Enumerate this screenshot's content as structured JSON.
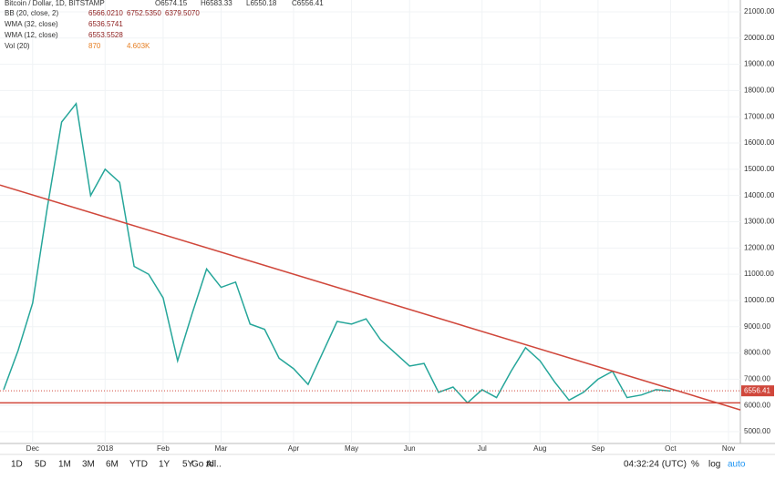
{
  "legend": {
    "symbol": "Bitcoin / Dollar, 1D, BITSTAMP",
    "ohlc": [
      "O6574.15",
      "H6583.33",
      "L6550.18",
      "C6556.41"
    ],
    "indicators": [
      {
        "label": "BB (20, close, 2)",
        "values": [
          "6566.0210",
          "6752.5350",
          "6379.5070"
        ]
      },
      {
        "label": "WMA (32, close)",
        "values": [
          "6536.5741"
        ]
      },
      {
        "label": "WMA (12, close)",
        "values": [
          "6553.5528"
        ]
      },
      {
        "label": "Vol (20)",
        "values": [
          "870",
          "4.603K"
        ]
      }
    ]
  },
  "chart_data": {
    "type": "line",
    "categories": [
      null,
      null,
      "Dec",
      null,
      null,
      null,
      null,
      "2018",
      null,
      null,
      null,
      "Feb",
      null,
      null,
      null,
      "Mar",
      null,
      null,
      null,
      null,
      "Apr",
      null,
      null,
      null,
      "May",
      null,
      null,
      null,
      "Jun",
      null,
      null,
      null,
      null,
      "Jul",
      null,
      null,
      null,
      "Aug",
      null,
      null,
      null,
      "Sep",
      null,
      null,
      null,
      null,
      "Oct",
      null,
      null,
      null,
      "Nov",
      null,
      null
    ],
    "series": [
      {
        "color": "#26a69a",
        "values": [
          6600,
          8100,
          9900,
          13500,
          16800,
          17500,
          14000,
          15000,
          14500,
          11300,
          11000,
          10100,
          7700,
          9500,
          11200,
          10500,
          10700,
          9100,
          8900,
          7800,
          7400,
          6800,
          8000,
          9200,
          9100,
          9300,
          8500,
          8000,
          7500,
          7600,
          6500,
          6700,
          6100,
          6600,
          6300,
          7300,
          8200,
          7700,
          6900,
          6200,
          6500,
          7000,
          7300,
          6300,
          6400,
          6600,
          6550,
          null,
          null,
          null,
          null,
          null,
          null
        ]
      }
    ],
    "trendline": [
      14400,
      5830
    ],
    "support": 6100,
    "last_price": {
      "value": 6556.41,
      "label": "6556.41"
    },
    "ylim": [
      4550,
      21450
    ],
    "yticks": [
      {
        "value": 5000,
        "label": "5000.00"
      },
      {
        "value": 6000,
        "label": "6000.00"
      },
      {
        "value": 7000,
        "label": "7000.00"
      },
      {
        "value": 8000,
        "label": "8000.00"
      },
      {
        "value": 9000,
        "label": "9000.00"
      },
      {
        "value": 10000,
        "label": "10000.00"
      },
      {
        "value": 11000,
        "label": "11000.00"
      },
      {
        "value": 12000,
        "label": "12000.00"
      },
      {
        "value": 13000,
        "label": "13000.00"
      },
      {
        "value": 14000,
        "label": "14000.00"
      },
      {
        "value": 15000,
        "label": "15000.00"
      },
      {
        "value": 16000,
        "label": "16000.00"
      },
      {
        "value": 17000,
        "label": "17000.00"
      },
      {
        "value": 18000,
        "label": "18000.00"
      },
      {
        "value": 19000,
        "label": "19000.00"
      },
      {
        "value": 20000,
        "label": "20000.00"
      },
      {
        "value": 21000,
        "label": "21000.00"
      }
    ],
    "grid": true,
    "line_color": "#d0473b"
  },
  "toolbar": {
    "ranges": [
      "1D",
      "5D",
      "1M",
      "3M",
      "6M",
      "YTD",
      "1Y",
      "5Y",
      "All"
    ],
    "goto": "Go to...",
    "clock": "04:32:24 (UTC)",
    "options": [
      "%",
      "log",
      "auto"
    ]
  }
}
